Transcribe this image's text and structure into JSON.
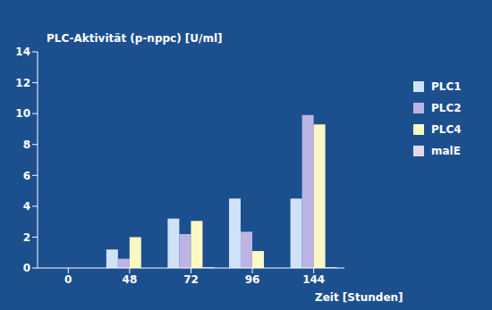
{
  "chart_data": {
    "type": "bar",
    "title": "PLC-Aktivität (p-nppc) [U/ml]",
    "x_label": "Zeit [Stunden]",
    "categories": [
      "0",
      "48",
      "72",
      "96",
      "144"
    ],
    "series": [
      {
        "name": "PLC1",
        "color": "#cfe2f7",
        "values": [
          null,
          1.2,
          3.2,
          4.5,
          4.5
        ]
      },
      {
        "name": "PLC2",
        "color": "#bcb4e4",
        "values": [
          null,
          0.6,
          2.2,
          2.35,
          9.9
        ]
      },
      {
        "name": "PLC4",
        "color": "#fbf8c2",
        "values": [
          null,
          2.0,
          3.05,
          1.1,
          9.3
        ]
      },
      {
        "name": "malE",
        "color": "#e2d9ea",
        "values": [
          null,
          0,
          0.05,
          0,
          0.05
        ]
      }
    ],
    "ylim": [
      0,
      14
    ],
    "yticks": [
      0,
      2,
      4,
      6,
      8,
      10,
      12,
      14
    ],
    "grid": false,
    "legend": "right"
  }
}
